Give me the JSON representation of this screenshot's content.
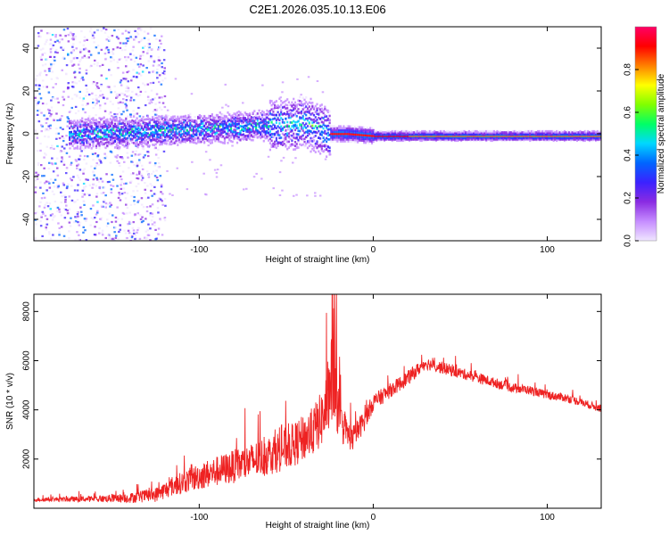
{
  "chart_data": [
    {
      "type": "heatmap",
      "title": "C2E1.2026.035.10.13.E06",
      "xlabel": "Height of straight line (km)",
      "ylabel": "Frequency (Hz)",
      "xlim": [
        -195,
        131
      ],
      "ylim": [
        -50,
        50
      ],
      "xticks": [
        -100,
        0,
        100
      ],
      "xtick_labels": [
        "-100",
        "0",
        "100"
      ],
      "yticks": [
        -40,
        -20,
        0,
        20,
        40
      ],
      "ytick_labels": [
        "-40",
        "-20",
        "0",
        "20",
        "40"
      ],
      "colorbar": {
        "label": "Normalized spectral amplitude",
        "range": [
          0,
          1
        ],
        "ticks": [
          0.0,
          0.2,
          0.4,
          0.6,
          0.8
        ],
        "tick_labels": [
          "0.0",
          "0.2",
          "0.4",
          "0.6",
          "0.8"
        ],
        "colors": [
          "#f0e6ff",
          "#c58cff",
          "#8a2be2",
          "#3b22ff",
          "#0066ff",
          "#00d8ff",
          "#00ff66",
          "#80ff00",
          "#ffff00",
          "#ff8000",
          "#ff0000",
          "#ff0066"
        ]
      },
      "ridge": {
        "x": [
          -175,
          -140,
          -110,
          -80,
          -60,
          -40,
          -32,
          -25,
          -15,
          0,
          20,
          40,
          60,
          80,
          100,
          131
        ],
        "freq": [
          0,
          1,
          2,
          3,
          4,
          5,
          3,
          0,
          0,
          -1,
          -1,
          -1,
          -1,
          -1,
          -1,
          -1
        ]
      }
    },
    {
      "type": "line",
      "xlabel": "Height of straight line (km)",
      "ylabel": "SNR (10 * v/v)",
      "xlim": [
        -195,
        131
      ],
      "ylim": [
        0,
        8700
      ],
      "xticks": [
        -100,
        0,
        100
      ],
      "xtick_labels": [
        "-100",
        "0",
        "100"
      ],
      "yticks": [
        2000,
        4000,
        6000,
        8000
      ],
      "ytick_labels": [
        "2000",
        "4000",
        "6000",
        "8000"
      ],
      "color": "#ee2222",
      "series": [
        {
          "name": "SNR",
          "x": [
            -195,
            -160,
            -140,
            -125,
            -115,
            -100,
            -85,
            -70,
            -55,
            -45,
            -35,
            -28,
            -24,
            -22,
            -18,
            -12,
            -5,
            0,
            10,
            20,
            30,
            40,
            50,
            60,
            70,
            80,
            90,
            100,
            110,
            120,
            131
          ],
          "values": [
            350,
            380,
            420,
            550,
            900,
            1300,
            1600,
            1900,
            2300,
            2600,
            3100,
            3800,
            5400,
            4600,
            3300,
            2800,
            3600,
            4300,
            4800,
            5300,
            5900,
            5700,
            5500,
            5300,
            5100,
            4900,
            4800,
            4600,
            4500,
            4300,
            4050
          ],
          "noise": [
            80,
            120,
            200,
            300,
            400,
            550,
            650,
            750,
            850,
            900,
            1000,
            1200,
            1800,
            1400,
            700,
            500,
            450,
            350,
            300,
            300,
            250,
            250,
            220,
            220,
            200,
            200,
            180,
            180,
            170,
            160,
            150
          ]
        }
      ]
    }
  ]
}
